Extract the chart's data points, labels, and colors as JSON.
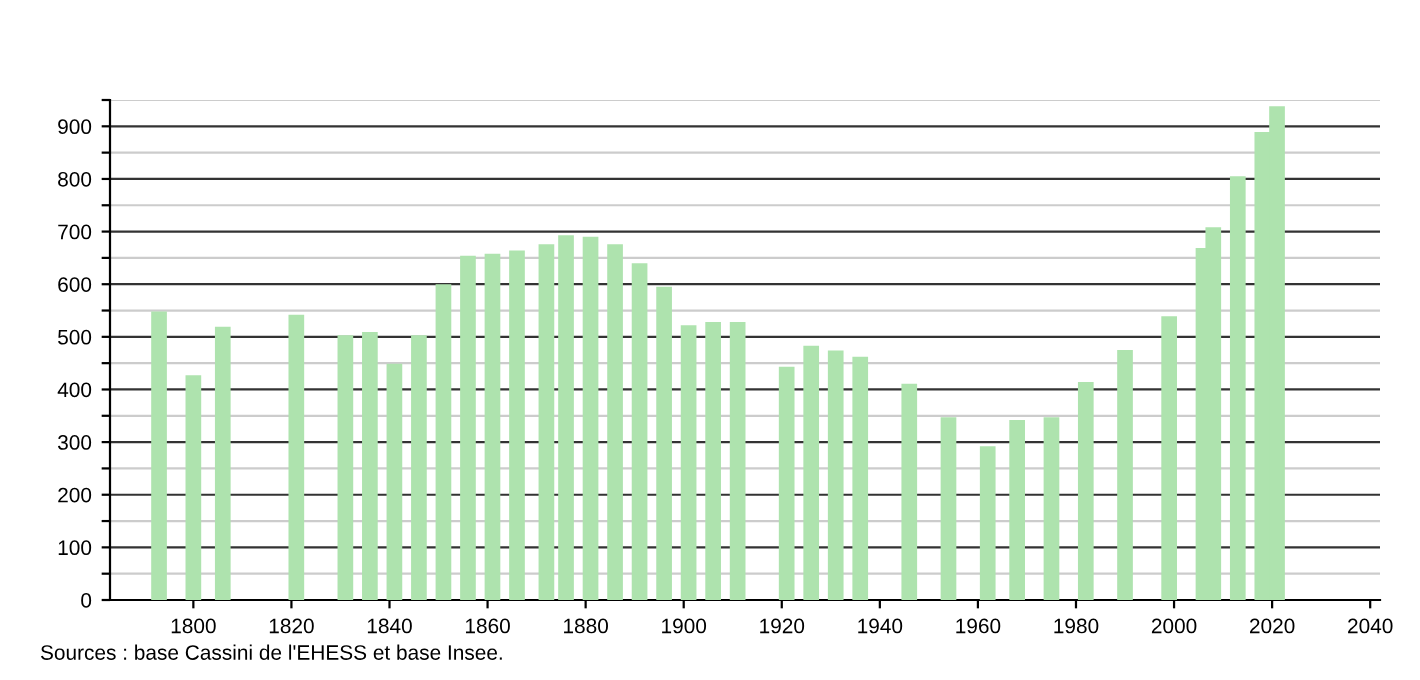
{
  "chart_data": {
    "type": "bar",
    "x": [
      1793,
      1800,
      1806,
      1821,
      1831,
      1836,
      1841,
      1846,
      1851,
      1856,
      1861,
      1866,
      1872,
      1876,
      1881,
      1886,
      1891,
      1896,
      1901,
      1906,
      1911,
      1921,
      1926,
      1931,
      1936,
      1946,
      1954,
      1962,
      1968,
      1975,
      1982,
      1990,
      1999,
      2006,
      2008,
      2013,
      2018,
      2021
    ],
    "values": [
      548,
      427,
      519,
      542,
      503,
      509,
      449,
      503,
      600,
      654,
      658,
      664,
      676,
      693,
      690,
      676,
      640,
      595,
      522,
      528,
      528,
      443,
      483,
      474,
      462,
      411,
      347,
      292,
      342,
      347,
      414,
      475,
      539,
      669,
      708,
      805,
      889,
      938
    ],
    "color": "#aee3ae",
    "xlim": [
      1783,
      2042
    ],
    "xticks": [
      1800,
      1820,
      1840,
      1860,
      1880,
      1900,
      1920,
      1940,
      1960,
      1980,
      2000,
      2020,
      2040
    ],
    "ylim": [
      0,
      950
    ],
    "yticks": [
      0,
      {
        "value": 50,
        "label": null
      },
      100,
      {
        "value": 150,
        "label": null
      },
      200,
      {
        "value": 250,
        "label": null
      },
      300,
      {
        "value": 350,
        "label": null
      },
      400,
      {
        "value": 450,
        "label": null
      },
      500,
      {
        "value": 550,
        "label": null
      },
      600,
      {
        "value": 650,
        "label": null
      },
      700,
      {
        "value": 750,
        "label": null
      },
      800,
      {
        "value": 850,
        "label": null
      },
      900,
      {
        "value": 950,
        "label": null
      }
    ],
    "grid": "y",
    "annotations": [
      "Sources : base Cassini de l'EHESS et base Insee."
    ]
  }
}
